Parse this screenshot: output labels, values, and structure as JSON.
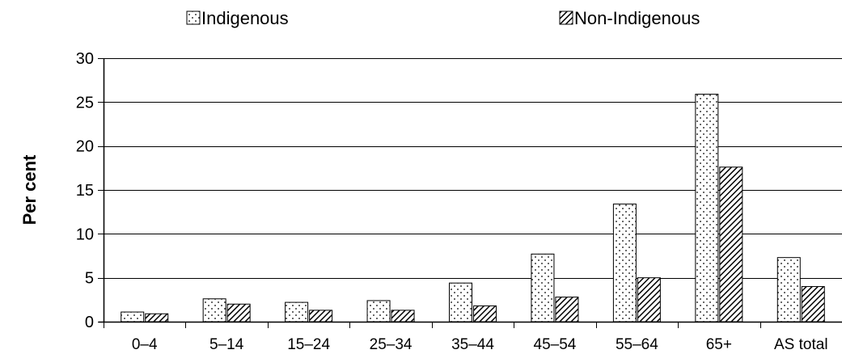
{
  "chart_data": {
    "type": "bar",
    "categories": [
      "0–4",
      "5–14",
      "15–24",
      "25–34",
      "35–44",
      "45–54",
      "55–64",
      "65+",
      "AS total"
    ],
    "series": [
      {
        "name": "Indigenous",
        "values": [
          1.1,
          2.6,
          2.2,
          2.4,
          4.4,
          7.7,
          13.4,
          25.9,
          7.3
        ],
        "pattern": "dots"
      },
      {
        "name": "Non-Indigenous",
        "values": [
          0.9,
          2.0,
          1.3,
          1.3,
          1.8,
          2.8,
          5.0,
          17.6,
          4.0
        ],
        "pattern": "diagonal-hatch"
      }
    ],
    "title": "",
    "xlabel": "",
    "ylabel": "Per cent",
    "ylim": [
      0,
      30
    ],
    "yticks": [
      "0",
      "5",
      "10",
      "15",
      "20",
      "25",
      "30"
    ],
    "grid": true,
    "legend_position": "top"
  }
}
